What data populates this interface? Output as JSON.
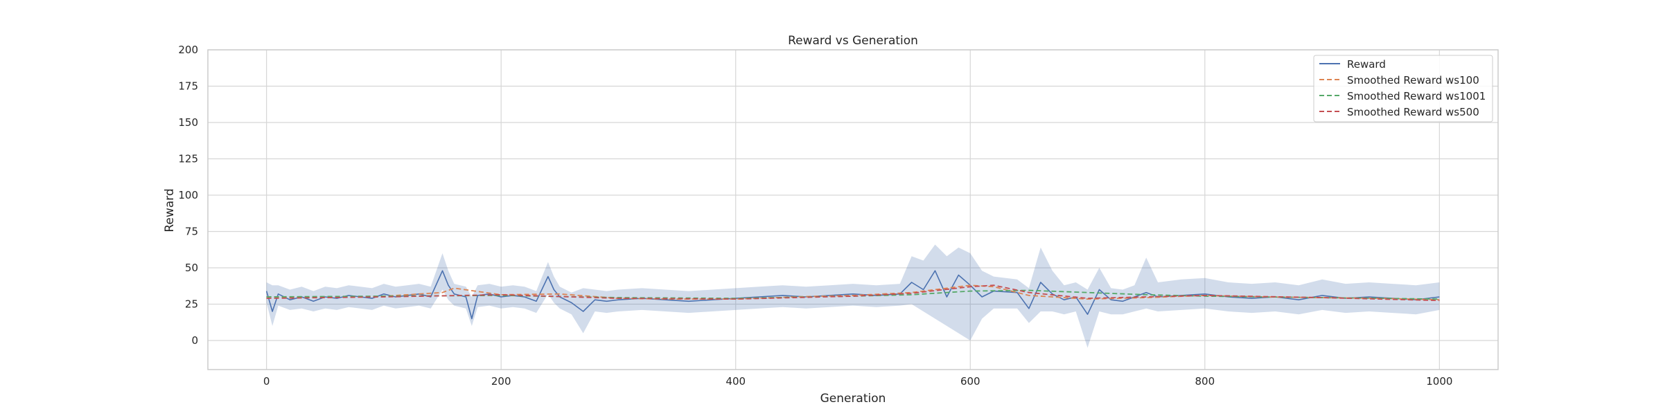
{
  "chart_data": {
    "type": "line",
    "title": "Reward vs Generation",
    "xlabel": "Generation",
    "ylabel": "Reward",
    "xlim": [
      -50,
      1050
    ],
    "ylim": [
      -20,
      200
    ],
    "x_ticks": [
      0,
      200,
      400,
      600,
      800,
      1000
    ],
    "y_ticks": [
      0,
      25,
      50,
      75,
      100,
      125,
      150,
      175,
      200
    ],
    "grid": true,
    "legend_position": "top-right",
    "series": [
      {
        "name": "Reward",
        "color": "#4c72b0",
        "style": "solid",
        "band": "min-max (shaded)",
        "x": [
          0,
          5,
          10,
          20,
          30,
          40,
          50,
          60,
          70,
          80,
          90,
          100,
          110,
          120,
          130,
          140,
          150,
          155,
          160,
          170,
          175,
          180,
          190,
          200,
          210,
          220,
          230,
          240,
          245,
          250,
          260,
          270,
          280,
          290,
          300,
          320,
          340,
          360,
          380,
          400,
          420,
          440,
          460,
          480,
          500,
          520,
          540,
          550,
          560,
          570,
          580,
          590,
          600,
          610,
          620,
          640,
          650,
          660,
          670,
          680,
          690,
          700,
          710,
          720,
          730,
          740,
          750,
          760,
          780,
          800,
          820,
          840,
          860,
          880,
          900,
          920,
          940,
          960,
          980,
          1000
        ],
        "y": [
          34,
          20,
          32,
          28,
          30,
          27,
          30,
          29,
          31,
          30,
          29,
          32,
          30,
          31,
          32,
          30,
          48,
          38,
          32,
          30,
          15,
          31,
          32,
          30,
          31,
          30,
          27,
          44,
          35,
          30,
          26,
          20,
          28,
          27,
          28,
          29,
          28,
          27,
          28,
          29,
          30,
          31,
          30,
          31,
          32,
          31,
          32,
          40,
          35,
          48,
          30,
          45,
          38,
          30,
          34,
          33,
          22,
          40,
          32,
          28,
          30,
          18,
          35,
          28,
          27,
          30,
          33,
          30,
          31,
          32,
          30,
          29,
          30,
          28,
          31,
          29,
          30,
          29,
          28,
          30
        ],
        "band_low": [
          26,
          10,
          24,
          21,
          22,
          20,
          22,
          21,
          23,
          22,
          21,
          24,
          22,
          23,
          24,
          22,
          35,
          28,
          24,
          22,
          10,
          23,
          24,
          22,
          23,
          22,
          19,
          32,
          26,
          22,
          18,
          5,
          20,
          19,
          20,
          21,
          20,
          19,
          20,
          21,
          22,
          23,
          22,
          23,
          24,
          23,
          24,
          25,
          20,
          15,
          10,
          5,
          0,
          15,
          22,
          22,
          12,
          20,
          20,
          18,
          20,
          -5,
          20,
          18,
          18,
          20,
          22,
          20,
          21,
          22,
          20,
          19,
          20,
          18,
          21,
          19,
          20,
          19,
          18,
          21
        ],
        "band_high": [
          40,
          38,
          38,
          35,
          37,
          34,
          37,
          36,
          38,
          37,
          36,
          39,
          37,
          38,
          39,
          37,
          60,
          48,
          39,
          37,
          30,
          38,
          39,
          37,
          38,
          37,
          34,
          54,
          44,
          37,
          33,
          36,
          35,
          34,
          35,
          36,
          35,
          34,
          35,
          36,
          37,
          38,
          37,
          38,
          39,
          38,
          39,
          58,
          55,
          66,
          58,
          64,
          60,
          48,
          44,
          42,
          36,
          64,
          48,
          38,
          40,
          35,
          50,
          36,
          35,
          38,
          57,
          40,
          42,
          43,
          40,
          39,
          40,
          38,
          42,
          39,
          40,
          39,
          38,
          40
        ]
      },
      {
        "name": "Smoothed Reward ws100",
        "color": "#dd8452",
        "style": "dashed",
        "x": [
          0,
          50,
          100,
          150,
          160,
          200,
          250,
          300,
          350,
          400,
          450,
          500,
          550,
          580,
          600,
          620,
          650,
          700,
          750,
          800,
          850,
          900,
          950,
          1000
        ],
        "y": [
          30,
          29.5,
          30.5,
          33,
          36,
          31.5,
          32,
          29,
          28.5,
          28.5,
          30,
          31,
          33,
          36,
          38,
          37,
          31,
          28.5,
          29.5,
          31,
          30,
          29.5,
          29,
          28
        ]
      },
      {
        "name": "Smoothed Reward ws1001",
        "color": "#55a868",
        "style": "dashed",
        "x": [
          0,
          100,
          200,
          300,
          400,
          500,
          550,
          600,
          650,
          700,
          750,
          800,
          900,
          1000
        ],
        "y": [
          30,
          30.5,
          31,
          29.5,
          29,
          30.5,
          31.5,
          34,
          34.5,
          33,
          31.5,
          30.5,
          29.5,
          28.5
        ]
      },
      {
        "name": "Smoothed Reward ws500",
        "color": "#c44e52",
        "style": "dashed",
        "x": [
          0,
          100,
          200,
          300,
          400,
          500,
          550,
          600,
          620,
          650,
          700,
          750,
          800,
          900,
          1000
        ],
        "y": [
          29,
          30,
          31.5,
          29,
          28.5,
          30.5,
          32.5,
          37,
          38,
          33,
          29,
          30,
          31,
          29.5,
          27.5
        ]
      }
    ]
  }
}
